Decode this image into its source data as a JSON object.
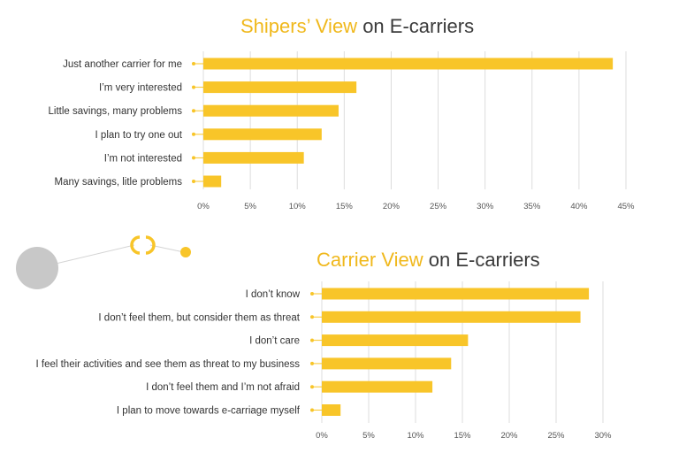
{
  "colors": {
    "bar": "#f8c529",
    "accent": "#f0b81c",
    "grid": "#dddddd",
    "circle": "#c8c8c8",
    "text": "#333333"
  },
  "chart_data": [
    {
      "type": "bar",
      "orientation": "horizontal",
      "title_highlight": "Shipers’ View",
      "title_rest": " on E-carriers",
      "categories": [
        "Just another carrier for me",
        "I’m very interested",
        "Little savings, many problems",
        "I plan to try one out",
        "I’m not interested",
        "Many savings, litle problems"
      ],
      "values": [
        43.6,
        16.3,
        14.4,
        12.6,
        10.7,
        1.9
      ],
      "xlim": [
        0,
        45
      ],
      "ticks": [
        "0%",
        "5%",
        "10%",
        "15%",
        "20%",
        "25%",
        "30%",
        "35%",
        "40%",
        "45%"
      ],
      "grid": true
    },
    {
      "type": "bar",
      "orientation": "horizontal",
      "title_highlight": "Carrier View",
      "title_rest": " on E-carriers",
      "categories": [
        "I don’t know",
        "I don’t feel them, but consider them as threat",
        "I don’t care",
        "I feel their activities and see them as threat to my business",
        "I don’t feel them and I’m not afraid",
        "I plan to move towards e-carriage myself"
      ],
      "values": [
        28.5,
        27.6,
        15.6,
        13.8,
        11.8,
        2.0
      ],
      "xlim": [
        0,
        30
      ],
      "ticks": [
        "0%",
        "5%",
        "10%",
        "15%",
        "20%",
        "25%",
        "30%"
      ],
      "grid": true
    }
  ]
}
